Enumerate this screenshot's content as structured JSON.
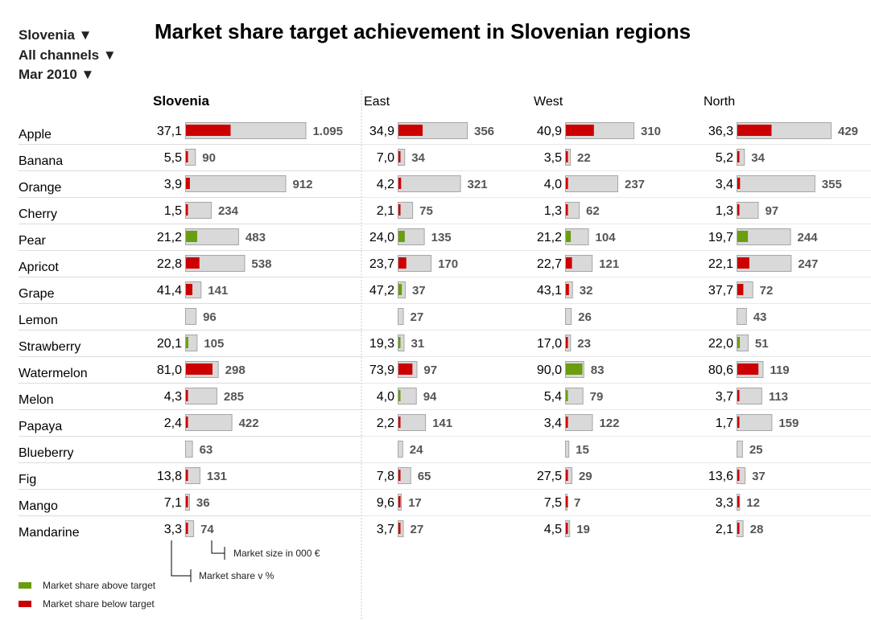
{
  "filters": {
    "country": "Slovenia ▼",
    "channel": "All channels ▼",
    "period": "Mar 2010 ▼"
  },
  "title": "Market share target achievement in Slovenian regions",
  "annotations": {
    "market_size": "Market size in 000 €",
    "market_share": "Market share v %"
  },
  "legend": {
    "above": {
      "label": "Market share above target",
      "color": "#6a9e10"
    },
    "below": {
      "label": "Market share below target",
      "color": "#cc0000"
    }
  },
  "colors": {
    "above": "#6a9e10",
    "below": "#cc0000",
    "market_bar": "#d9d9d9",
    "market_border": "#a6a6a6"
  },
  "chart_data": {
    "type": "table",
    "regions": [
      "Slovenia",
      "East",
      "West",
      "North"
    ],
    "products": [
      "Apple",
      "Banana",
      "Orange",
      "Cherry",
      "Pear",
      "Apricot",
      "Grape",
      "Lemon",
      "Strawberry",
      "Watermelon",
      "Melon",
      "Papaya",
      "Blueberry",
      "Fig",
      "Mango",
      "Mandarine"
    ],
    "market_size": {
      "Slovenia": [
        "1.095",
        "90",
        "912",
        "234",
        "483",
        "538",
        "141",
        "96",
        "105",
        "298",
        "285",
        "422",
        "63",
        "131",
        "36",
        "74"
      ],
      "East": [
        "356",
        "34",
        "321",
        "75",
        "135",
        "170",
        "37",
        "27",
        "31",
        "97",
        "94",
        "141",
        "24",
        "65",
        "17",
        "27"
      ],
      "West": [
        "310",
        "22",
        "237",
        "62",
        "104",
        "121",
        "32",
        "26",
        "23",
        "83",
        "79",
        "122",
        "15",
        "29",
        "7",
        "19"
      ],
      "North": [
        "429",
        "34",
        "355",
        "97",
        "244",
        "247",
        "72",
        "43",
        "51",
        "119",
        "113",
        "159",
        "25",
        "37",
        "12",
        "28"
      ]
    },
    "market_share": {
      "Slovenia": [
        "37,1",
        "5,5",
        "3,9",
        "1,5",
        "21,2",
        "22,8",
        "41,4",
        "",
        "20,1",
        "81,0",
        "4,3",
        "2,4",
        "",
        "13,8",
        "7,1",
        "3,3"
      ],
      "East": [
        "34,9",
        "7,0",
        "4,2",
        "2,1",
        "24,0",
        "23,7",
        "47,2",
        "",
        "19,3",
        "73,9",
        "4,0",
        "2,2",
        "",
        "7,8",
        "9,6",
        "3,7"
      ],
      "West": [
        "40,9",
        "3,5",
        "4,0",
        "1,3",
        "21,2",
        "22,7",
        "43,1",
        "",
        "17,0",
        "90,0",
        "5,4",
        "3,4",
        "",
        "27,5",
        "7,5",
        "4,5"
      ],
      "North": [
        "36,3",
        "5,2",
        "3,4",
        "1,3",
        "19,7",
        "22,1",
        "37,7",
        "",
        "22,0",
        "80,6",
        "3,7",
        "1,7",
        "",
        "13,6",
        "3,3",
        "2,1"
      ]
    },
    "target_status": {
      "Slovenia": [
        "below",
        "below",
        "below",
        "below",
        "above",
        "below",
        "below",
        "",
        "above",
        "below",
        "below",
        "below",
        "",
        "below",
        "below",
        "below"
      ],
      "East": [
        "below",
        "below",
        "below",
        "below",
        "above",
        "below",
        "above",
        "",
        "above",
        "below",
        "above",
        "below",
        "",
        "below",
        "below",
        "below"
      ],
      "West": [
        "below",
        "below",
        "below",
        "below",
        "above",
        "below",
        "below",
        "",
        "below",
        "above",
        "above",
        "below",
        "",
        "below",
        "below",
        "below"
      ],
      "North": [
        "below",
        "below",
        "below",
        "below",
        "above",
        "below",
        "below",
        "",
        "above",
        "below",
        "below",
        "below",
        "",
        "below",
        "below",
        "below"
      ]
    }
  }
}
